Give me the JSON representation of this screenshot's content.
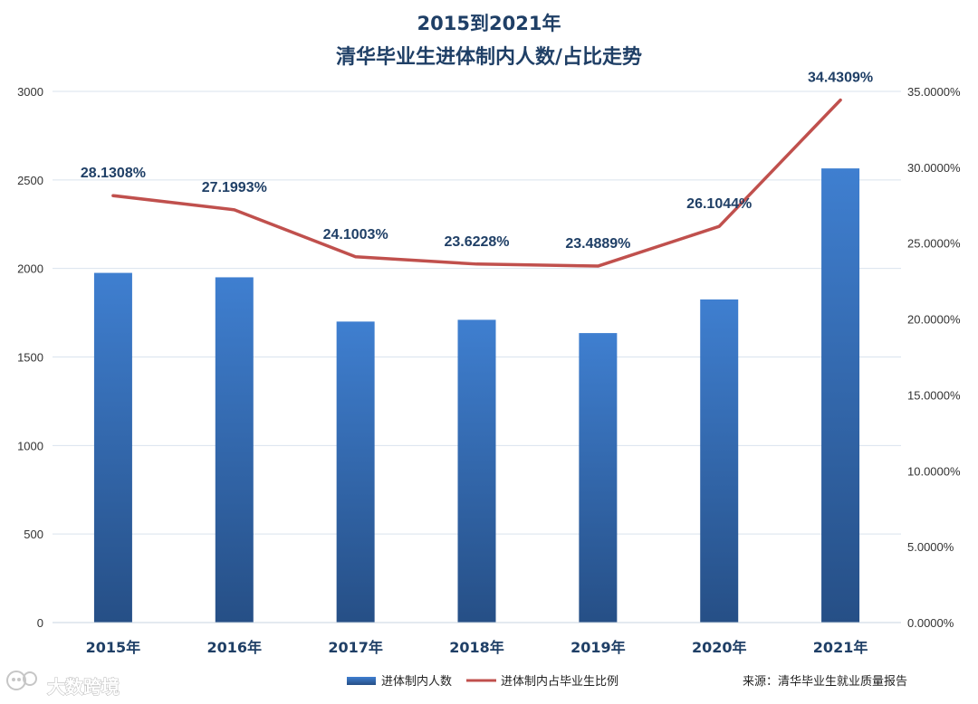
{
  "chart_data": {
    "type": "bar",
    "title": [
      "2015到2021年",
      "清华毕业生进体制内人数/占比走势"
    ],
    "categories": [
      "2015年",
      "2016年",
      "2017年",
      "2018年",
      "2019年",
      "2020年",
      "2021年"
    ],
    "series": [
      {
        "name": "进体制内人数",
        "type": "bar",
        "axis": "left",
        "values": [
          1975,
          1950,
          1700,
          1710,
          1635,
          1825,
          2565
        ]
      },
      {
        "name": "进体制内占毕业生比例",
        "type": "line",
        "axis": "right",
        "values": [
          28.1308,
          27.1993,
          24.1003,
          23.6228,
          23.4889,
          26.1044,
          34.4309
        ],
        "labels": [
          "28.1308%",
          "27.1993%",
          "24.1003%",
          "23.6228%",
          "23.4889%",
          "26.1044%",
          "34.4309%"
        ]
      }
    ],
    "left_axis": {
      "ylim": [
        0,
        3000
      ],
      "ticks": [
        0,
        500,
        1000,
        1500,
        2000,
        2500,
        3000
      ],
      "tick_labels": [
        "0",
        "500",
        "1000",
        "1500",
        "2000",
        "2500",
        "3000"
      ]
    },
    "right_axis": {
      "ylim": [
        0,
        35
      ],
      "ticks": [
        0,
        5,
        10,
        15,
        20,
        25,
        30,
        35
      ],
      "tick_labels": [
        "0.0000%",
        "5.0000%",
        "10.0000%",
        "15.0000%",
        "20.0000%",
        "25.0000%",
        "30.0000%",
        "35.0000%"
      ]
    },
    "grid": true,
    "legend": {
      "position": "bottom",
      "entries": [
        "进体制内人数",
        "进体制内占毕业生比例"
      ]
    },
    "source": "来源：清华毕业生就业质量报告",
    "watermark": "大数跨境",
    "colors": {
      "bar_top": "#3f7fd0",
      "bar_bottom": "#264f86",
      "line": "#c0504d",
      "title": "#1f3f66",
      "grid": "#d9e3ee"
    }
  }
}
